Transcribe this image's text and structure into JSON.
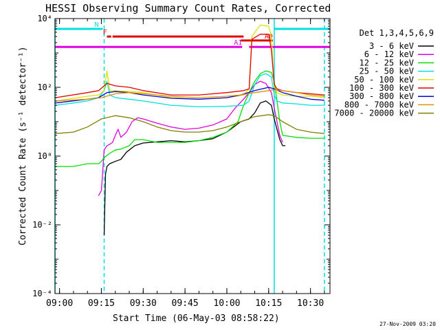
{
  "chart_data": {
    "type": "line",
    "title": "HESSI Observing Summary Count Rates, Corrected",
    "xlabel": "Start Time (06-May-03 08:58:22)",
    "ylabel": "Corrected Count Rate (s⁻¹ detector⁻¹)",
    "footer": "27-Nov-2009 03:20",
    "x_ticks": [
      "09:00",
      "09:15",
      "09:30",
      "09:45",
      "10:00",
      "10:15",
      "10:30"
    ],
    "y_ticks": [
      "10⁻⁴",
      "10⁻²",
      "10⁰",
      "10²",
      "10⁴"
    ],
    "y_scale": "log",
    "xlim": [
      "08:58:22",
      "10:37:00"
    ],
    "ylim": [
      0.0001,
      10000
    ],
    "legend_title": "Det 1,3,4,5,6,9",
    "legend_position": "right",
    "series": [
      {
        "name": "3 - 6 keV",
        "color": "#000000",
        "x": [
          "09:16",
          "09:16:30",
          "09:17",
          "09:18",
          "09:20",
          "09:22",
          "09:24",
          "09:27",
          "09:30",
          "09:35",
          "09:40",
          "09:45",
          "09:50",
          "09:55",
          "10:00",
          "10:05",
          "10:08",
          "10:10",
          "10:12",
          "10:14",
          "10:16",
          "10:17",
          "10:18",
          "10:19",
          "10:20",
          "10:21"
        ],
        "values": [
          0.005,
          0.3,
          0.5,
          0.6,
          0.7,
          0.8,
          1.3,
          2.0,
          2.4,
          2.6,
          2.8,
          2.6,
          2.8,
          3.2,
          5.0,
          10,
          12,
          18,
          35,
          40,
          30,
          12,
          6,
          3,
          2,
          2
        ]
      },
      {
        "name": "6 - 12 keV",
        "color": "#e000e0",
        "x": [
          "09:14",
          "09:15",
          "09:16",
          "09:17",
          "09:18",
          "09:19",
          "09:20",
          "09:21",
          "09:22",
          "09:24",
          "09:26",
          "09:28",
          "09:30",
          "09:35",
          "09:40",
          "09:45",
          "09:50",
          "09:55",
          "10:00",
          "10:03",
          "10:06",
          "10:08",
          "10:10",
          "10:12",
          "10:14",
          "10:16",
          "10:17",
          "10:18",
          "10:19",
          "10:20"
        ],
        "values": [
          0.07,
          0.1,
          1.5,
          2.0,
          2.2,
          2.5,
          4.0,
          6.0,
          3.5,
          5.0,
          10,
          13,
          12,
          9,
          7,
          6,
          6.5,
          8,
          12,
          25,
          45,
          70,
          120,
          150,
          130,
          70,
          25,
          10,
          4,
          2.5
        ]
      },
      {
        "name": "12 - 25 keV",
        "color": "#00e000",
        "x": [
          "08:58:30",
          "09:05",
          "09:10",
          "09:14",
          "09:15",
          "09:16",
          "09:18",
          "09:20",
          "09:22",
          "09:25",
          "09:27",
          "09:30",
          "09:35",
          "09:40",
          "09:45",
          "09:50",
          "09:55",
          "10:00",
          "10:04",
          "10:06",
          "10:08",
          "10:10",
          "10:12",
          "10:14",
          "10:16",
          "10:17",
          "10:18",
          "10:19",
          "10:20",
          "10:25",
          "10:30",
          "10:35"
        ],
        "values": [
          0.5,
          0.5,
          0.6,
          0.6,
          0.7,
          0.9,
          1.2,
          1.5,
          1.6,
          2.0,
          3.0,
          3.0,
          2.5,
          2.5,
          2.5,
          2.8,
          3.5,
          5.0,
          10,
          30,
          70,
          150,
          250,
          300,
          270,
          150,
          40,
          10,
          4,
          3.5,
          3.3,
          3.3
        ]
      },
      {
        "name": "25 - 50 keV",
        "color": "#00e0e0",
        "x": [
          "08:58:30",
          "09:05",
          "09:10",
          "09:14",
          "09:16",
          "09:17",
          "09:18",
          "09:20",
          "09:25",
          "09:30",
          "09:40",
          "09:50",
          "10:00",
          "10:06",
          "10:08",
          "10:10",
          "10:12",
          "10:14",
          "10:16",
          "10:17",
          "10:18",
          "10:20",
          "10:25",
          "10:30",
          "10:35"
        ],
        "values": [
          30,
          35,
          40,
          50,
          80,
          150,
          60,
          50,
          45,
          40,
          30,
          27,
          28,
          30,
          40,
          120,
          220,
          250,
          200,
          60,
          40,
          35,
          33,
          30,
          30
        ]
      },
      {
        "name": "50 - 100 keV",
        "color": "#e0e000",
        "x": [
          "08:58:30",
          "09:10",
          "09:14",
          "09:16",
          "09:17",
          "09:18",
          "09:20",
          "09:25",
          "09:30",
          "09:40",
          "09:50",
          "10:00",
          "10:06",
          "10:08",
          "10:09",
          "10:12",
          "10:15",
          "10:16",
          "10:17",
          "10:18",
          "10:20",
          "10:25",
          "10:30",
          "10:35"
        ],
        "values": [
          40,
          55,
          60,
          80,
          300,
          80,
          80,
          75,
          70,
          50,
          45,
          50,
          60,
          90,
          3000,
          6500,
          6000,
          3000,
          100,
          70,
          60,
          55,
          55,
          50
        ]
      },
      {
        "name": "100 - 300 keV",
        "color": "#e00000",
        "x": [
          "08:58:30",
          "09:10",
          "09:14",
          "09:17",
          "09:20",
          "09:25",
          "09:30",
          "09:40",
          "09:50",
          "10:00",
          "10:06",
          "10:08",
          "10:09",
          "10:12",
          "10:15",
          "10:16",
          "10:17",
          "10:18",
          "10:20",
          "10:25",
          "10:30",
          "10:35"
        ],
        "values": [
          50,
          70,
          80,
          130,
          110,
          100,
          80,
          60,
          60,
          70,
          80,
          90,
          2500,
          3500,
          3500,
          1200,
          120,
          90,
          80,
          70,
          65,
          60
        ]
      },
      {
        "name": "300 - 800 keV",
        "color": "#0000e0",
        "x": [
          "08:58:30",
          "09:10",
          "09:14",
          "09:17",
          "09:20",
          "09:25",
          "09:30",
          "09:40",
          "09:50",
          "10:00",
          "10:05",
          "10:10",
          "10:15",
          "10:17",
          "10:20",
          "10:25",
          "10:30",
          "10:35"
        ],
        "values": [
          35,
          45,
          50,
          70,
          75,
          70,
          60,
          48,
          45,
          50,
          60,
          80,
          100,
          90,
          70,
          55,
          45,
          42
        ]
      },
      {
        "name": "800 - 7000 keV",
        "color": "#e09000",
        "x": [
          "08:58:30",
          "09:10",
          "09:15",
          "09:20",
          "09:25",
          "09:30",
          "09:40",
          "09:50",
          "10:00",
          "10:05",
          "10:10",
          "10:15",
          "10:17",
          "10:20",
          "10:25",
          "10:30",
          "10:35"
        ],
        "values": [
          40,
          45,
          50,
          65,
          70,
          65,
          55,
          50,
          55,
          60,
          70,
          80,
          85,
          80,
          70,
          60,
          55
        ]
      },
      {
        "name": "7000 - 20000 keV",
        "color": "#808000",
        "x": [
          "08:58:30",
          "09:05",
          "09:10",
          "09:15",
          "09:20",
          "09:25",
          "09:30",
          "09:35",
          "09:40",
          "09:45",
          "09:50",
          "09:55",
          "10:00",
          "10:05",
          "10:10",
          "10:15",
          "10:17",
          "10:20",
          "10:25",
          "10:30",
          "10:35"
        ],
        "values": [
          4.5,
          5,
          7,
          12,
          15,
          13,
          10,
          7,
          5.5,
          5,
          5,
          5.5,
          7,
          10,
          14,
          16,
          15,
          10,
          6,
          5,
          4.5
        ]
      }
    ],
    "flags": [
      {
        "label": "N",
        "color": "#00e0e0",
        "segments": [
          [
            "08:58:22",
            "09:15:30"
          ],
          [
            "10:17:00",
            "10:37:00"
          ]
        ],
        "value": 5000
      },
      {
        "label": "F",
        "color": "#e00000",
        "segments": [
          [
            "09:17:00",
            "09:18:30"
          ],
          [
            "09:19:00",
            "10:06:00"
          ]
        ],
        "value": 3000
      },
      {
        "label": "A0",
        "color": "#e00000",
        "segments": [
          [
            "10:05:00",
            "10:16:30"
          ]
        ],
        "value": 2300
      },
      {
        "label": "A1",
        "color": "#e000e0",
        "segments": [
          [
            "08:58:22",
            "10:05:30"
          ],
          [
            "10:08:00",
            "10:37:00"
          ]
        ],
        "value": 1500
      }
    ],
    "markers": [
      {
        "time": "08:58:22",
        "color": "#00e0e0",
        "style": "solid"
      },
      {
        "time": "09:16:00",
        "color": "#00e0e0",
        "style": "dashed"
      },
      {
        "time": "10:17:00",
        "color": "#00e0e0",
        "style": "solid"
      },
      {
        "time": "10:35:00",
        "color": "#00e0e0",
        "style": "dashed"
      }
    ]
  }
}
